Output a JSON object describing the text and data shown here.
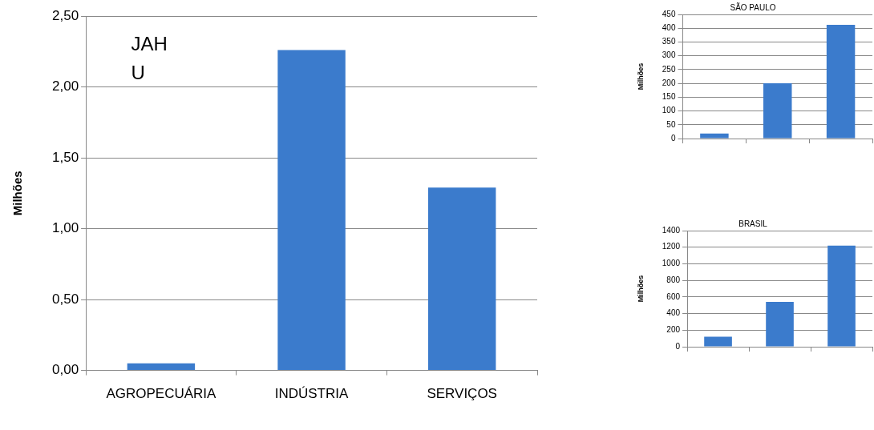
{
  "chart_data": [
    {
      "type": "bar",
      "ylabel": "Milhões",
      "annotations": [
        "JAH\nU"
      ],
      "categories": [
        "AGROPECUÁRIA",
        "INDÚSTRIA",
        "SERVIÇOS"
      ],
      "values": [
        0.05,
        2.26,
        1.29
      ],
      "color": "#3b7bcc",
      "ylim": [
        0,
        2.5
      ],
      "yticks": [
        {
          "value": 0,
          "label": "0,00"
        },
        {
          "value": 0.5,
          "label": "0,50"
        },
        {
          "value": 1,
          "label": "1,00"
        },
        {
          "value": 1.5,
          "label": "1,50"
        },
        {
          "value": 2,
          "label": "2,00"
        },
        {
          "value": 2.5,
          "label": "2,50"
        }
      ],
      "grid": "y",
      "legend": false
    },
    {
      "type": "bar",
      "title": "SÃO PAULO",
      "ylabel": "Milhões",
      "categories": [
        null,
        null,
        null
      ],
      "values": [
        18,
        200,
        412
      ],
      "color": "#3b7bcc",
      "ylim": [
        0,
        450
      ],
      "yticks": [
        0,
        50,
        100,
        150,
        200,
        250,
        300,
        350,
        400,
        450
      ],
      "grid": "y",
      "legend": false
    },
    {
      "type": "bar",
      "title": "BRASIL",
      "ylabel": "Milhões",
      "categories": [
        null,
        null,
        null
      ],
      "values": [
        120,
        540,
        1220
      ],
      "color": "#3b7bcc",
      "ylim": [
        0,
        1400
      ],
      "yticks": [
        0,
        200,
        400,
        600,
        800,
        1000,
        1200,
        1400
      ],
      "grid": "y",
      "legend": false
    }
  ]
}
